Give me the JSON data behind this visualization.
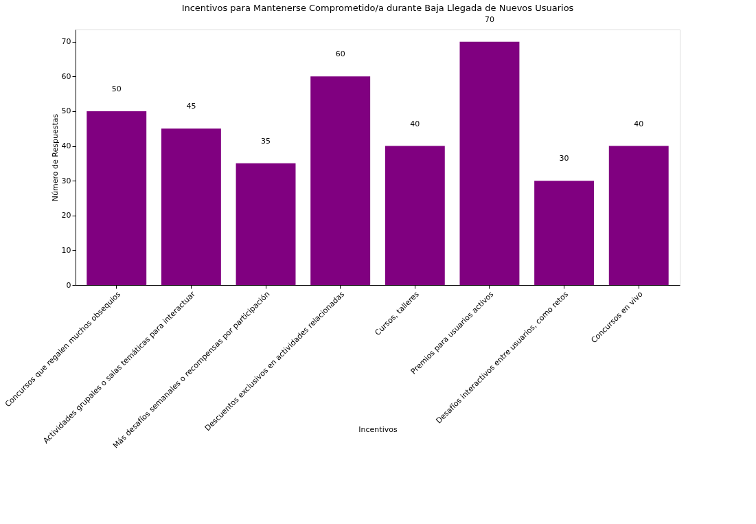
{
  "chart_data": {
    "type": "bar",
    "title": "Incentivos para Mantenerse Comprometido/a durante Baja Llegada de Nuevos Usuarios",
    "xlabel": "Incentivos",
    "ylabel": "Número de Respuestas",
    "categories": [
      "Concursos que regalen muchos obsequios",
      "Actividades grupales o salas temáticas para interactuar",
      "Más desafíos semanales o recompensas por participación",
      "Descuentos exclusivos en actividades relacionadas",
      "Cursos, talleres",
      "Premios para usuarios activos",
      "Desafíos interactivos entre usuarios, como retos",
      "Concursos en vivo"
    ],
    "values": [
      50,
      45,
      35,
      60,
      40,
      70,
      30,
      40
    ],
    "color": "#800080",
    "ylim": [
      0,
      73.5
    ],
    "yticks": [
      0,
      10,
      20,
      30,
      40,
      50,
      60,
      70
    ],
    "data_labels": true,
    "grid": false
  }
}
